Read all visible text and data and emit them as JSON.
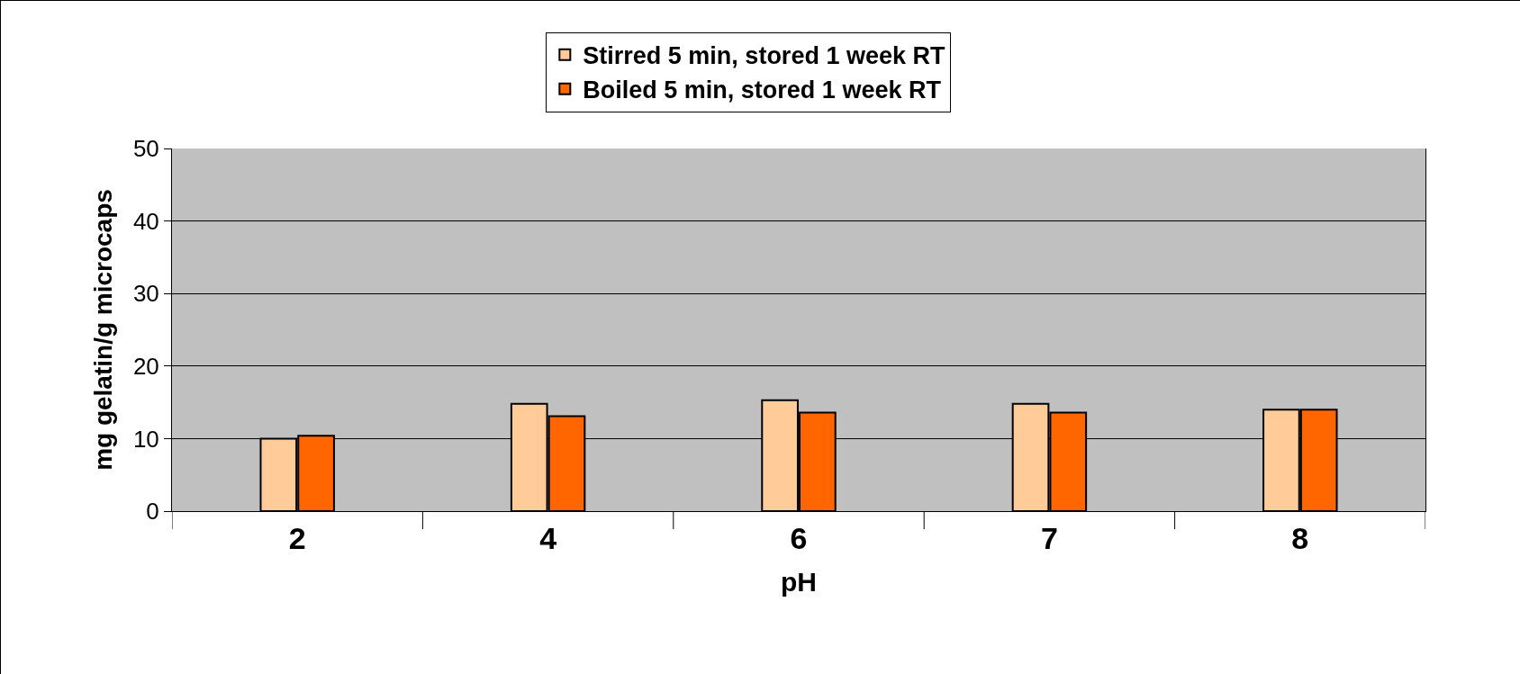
{
  "chart_data": {
    "type": "bar",
    "xlabel": "pH",
    "ylabel": "mg gelatin/g microcaps",
    "categories": [
      "2",
      "4",
      "6",
      "7",
      "8"
    ],
    "series": [
      {
        "name": "Stirred 5 min, stored 1 week RT",
        "color": "#ffcc99",
        "values": [
          10,
          14.8,
          15.3,
          14.8,
          14
        ]
      },
      {
        "name": "Boiled 5 min, stored 1 week RT",
        "color": "#ff6600",
        "values": [
          10.4,
          13.1,
          13.6,
          13.6,
          14
        ]
      }
    ],
    "ylim": [
      0,
      50
    ],
    "yticks": [
      0,
      10,
      20,
      30,
      40,
      50
    ],
    "grid": "y",
    "legend": "top"
  }
}
